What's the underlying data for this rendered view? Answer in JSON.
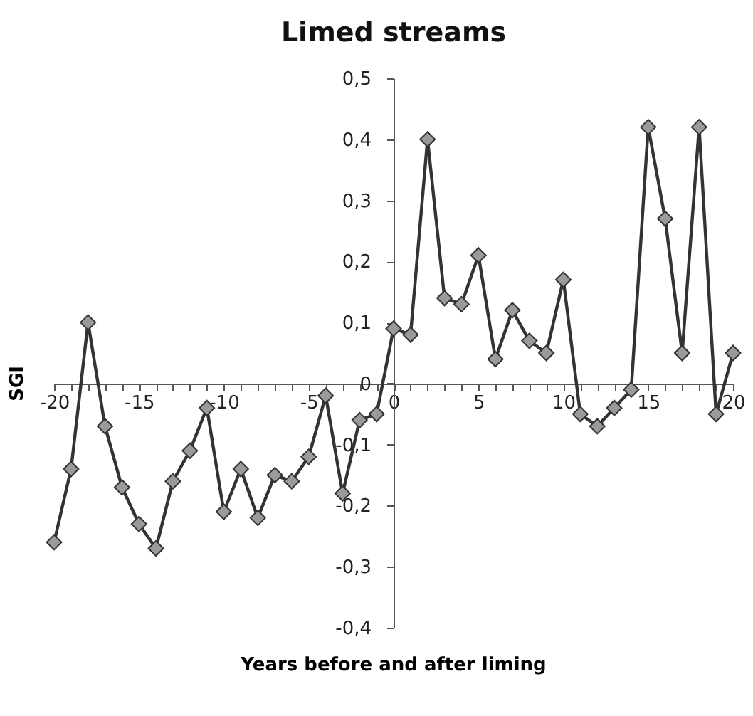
{
  "chart_data": {
    "type": "line",
    "title": "Limed streams",
    "xlabel": "Years before and after liming",
    "ylabel": "SGI",
    "x": [
      -20,
      -19,
      -18,
      -17,
      -16,
      -15,
      -14,
      -13,
      -12,
      -11,
      -10,
      -9,
      -8,
      -7,
      -6,
      -5,
      -4,
      -3,
      -2,
      -1,
      0,
      1,
      2,
      3,
      4,
      5,
      6,
      7,
      8,
      9,
      10,
      11,
      12,
      13,
      14,
      15,
      16,
      17,
      18,
      19,
      20
    ],
    "series": [
      {
        "color": "#333333",
        "values": [
          -0.26,
          -0.14,
          0.1,
          -0.07,
          -0.17,
          -0.23,
          -0.27,
          -0.16,
          -0.11,
          -0.04,
          -0.21,
          -0.14,
          -0.22,
          -0.15,
          -0.16,
          -0.12,
          -0.02,
          -0.18,
          -0.06,
          -0.05,
          0.09,
          0.08,
          0.4,
          0.14,
          0.13,
          0.21,
          0.04,
          0.12,
          0.07,
          0.05,
          0.17,
          -0.05,
          -0.07,
          -0.04,
          -0.01,
          0.42,
          0.27,
          0.05,
          0.42,
          -0.05,
          0.05
        ]
      }
    ],
    "marker": "diamond",
    "line_style": "solid",
    "xlim": [
      -20,
      20
    ],
    "xticks": [
      -20,
      {
        "value": -19,
        "label": null
      },
      {
        "value": -18,
        "label": null
      },
      {
        "value": -17,
        "label": null
      },
      {
        "value": -16,
        "label": null
      },
      -15,
      {
        "value": -14,
        "label": null
      },
      {
        "value": -13,
        "label": null
      },
      {
        "value": -12,
        "label": null
      },
      {
        "value": -11,
        "label": null
      },
      -10,
      {
        "value": -9,
        "label": null
      },
      {
        "value": -8,
        "label": null
      },
      {
        "value": -7,
        "label": null
      },
      {
        "value": -6,
        "label": null
      },
      -5,
      {
        "value": -4,
        "label": null
      },
      {
        "value": -3,
        "label": null
      },
      {
        "value": -2,
        "label": null
      },
      {
        "value": -1,
        "label": null
      },
      0,
      {
        "value": 1,
        "label": null
      },
      {
        "value": 2,
        "label": null
      },
      {
        "value": 3,
        "label": null
      },
      {
        "value": 4,
        "label": null
      },
      5,
      {
        "value": 6,
        "label": null
      },
      {
        "value": 7,
        "label": null
      },
      {
        "value": 8,
        "label": null
      },
      {
        "value": 9,
        "label": null
      },
      10,
      {
        "value": 11,
        "label": null
      },
      {
        "value": 12,
        "label": null
      },
      {
        "value": 13,
        "label": null
      },
      {
        "value": 14,
        "label": null
      },
      15,
      {
        "value": 16,
        "label": null
      },
      {
        "value": 17,
        "label": null
      },
      {
        "value": 18,
        "label": null
      },
      {
        "value": 19,
        "label": null
      },
      20
    ],
    "ylim": [
      -0.4,
      0.5
    ],
    "yticks": [
      {
        "value": -0.4,
        "label": "-0,4"
      },
      {
        "value": -0.3,
        "label": "-0,3"
      },
      {
        "value": -0.2,
        "label": "-0,2"
      },
      {
        "value": -0.1,
        "label": "-0,1"
      },
      0,
      {
        "value": 0.1,
        "label": "0,1"
      },
      {
        "value": 0.2,
        "label": "0,2"
      },
      {
        "value": 0.3,
        "label": "0,3"
      },
      {
        "value": 0.4,
        "label": "0,4"
      },
      {
        "value": 0.5,
        "label": "0,5"
      }
    ]
  }
}
